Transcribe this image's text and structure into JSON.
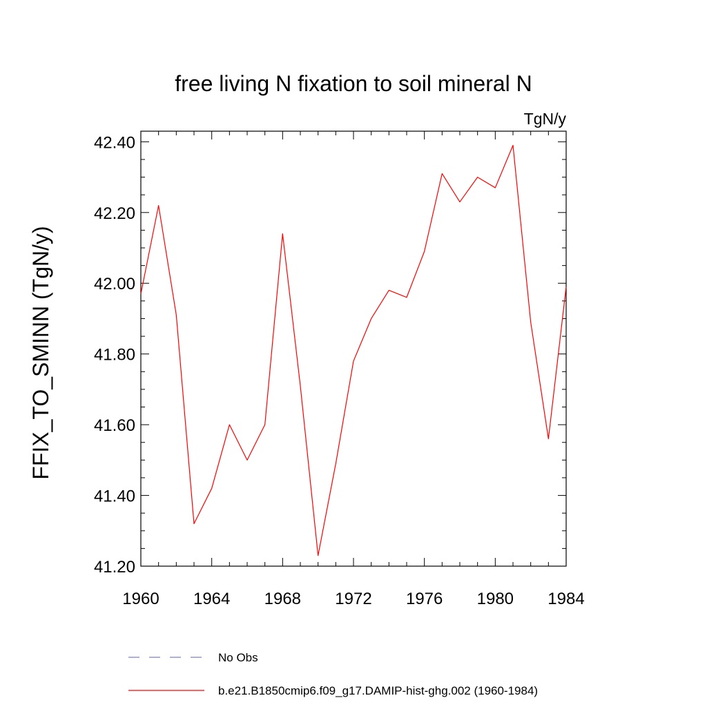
{
  "chart_data": {
    "type": "line",
    "title": "free living N fixation to soil mineral N",
    "units_label": "TgN/y",
    "xlabel": "",
    "ylabel": "FFIX_TO_SMINN  (TgN/y)",
    "xlim": [
      1960,
      1984
    ],
    "ylim": [
      41.2,
      42.43
    ],
    "x_ticks": [
      1960,
      1964,
      1968,
      1972,
      1976,
      1980,
      1984
    ],
    "x_tick_labels": [
      "1960",
      "1964",
      "1968",
      "1972",
      "1976",
      "1980",
      "1984"
    ],
    "y_ticks": [
      41.2,
      41.4,
      41.6,
      41.8,
      42.0,
      42.2,
      42.4
    ],
    "y_tick_labels": [
      "41.20",
      "41.40",
      "41.60",
      "41.80",
      "42.00",
      "42.20",
      "42.40"
    ],
    "grid": false,
    "legend_position": "bottom",
    "x": [
      1960,
      1961,
      1962,
      1963,
      1964,
      1965,
      1966,
      1967,
      1968,
      1969,
      1970,
      1971,
      1972,
      1973,
      1974,
      1975,
      1976,
      1977,
      1978,
      1979,
      1980,
      1981,
      1982,
      1983,
      1984
    ],
    "series": [
      {
        "name": "b.e21.B1850cmip6.f09_g17.DAMIP-hist-ghg.002 (1960-1984)",
        "color": "#ff0000",
        "style": "solid",
        "values": [
          41.97,
          42.22,
          41.91,
          41.32,
          41.42,
          41.6,
          41.5,
          41.6,
          42.14,
          41.71,
          41.23,
          41.49,
          41.78,
          41.9,
          41.98,
          41.96,
          42.09,
          42.31,
          42.23,
          42.3,
          42.27,
          42.39,
          41.89,
          41.56,
          41.99
        ]
      }
    ],
    "legend": [
      {
        "label": "No Obs",
        "color": "#7f7fcc",
        "style": "dashed"
      },
      {
        "label": "b.e21.B1850cmip6.f09_g17.DAMIP-hist-ghg.002 (1960-1984)",
        "color": "#ff0000",
        "style": "solid"
      }
    ]
  }
}
